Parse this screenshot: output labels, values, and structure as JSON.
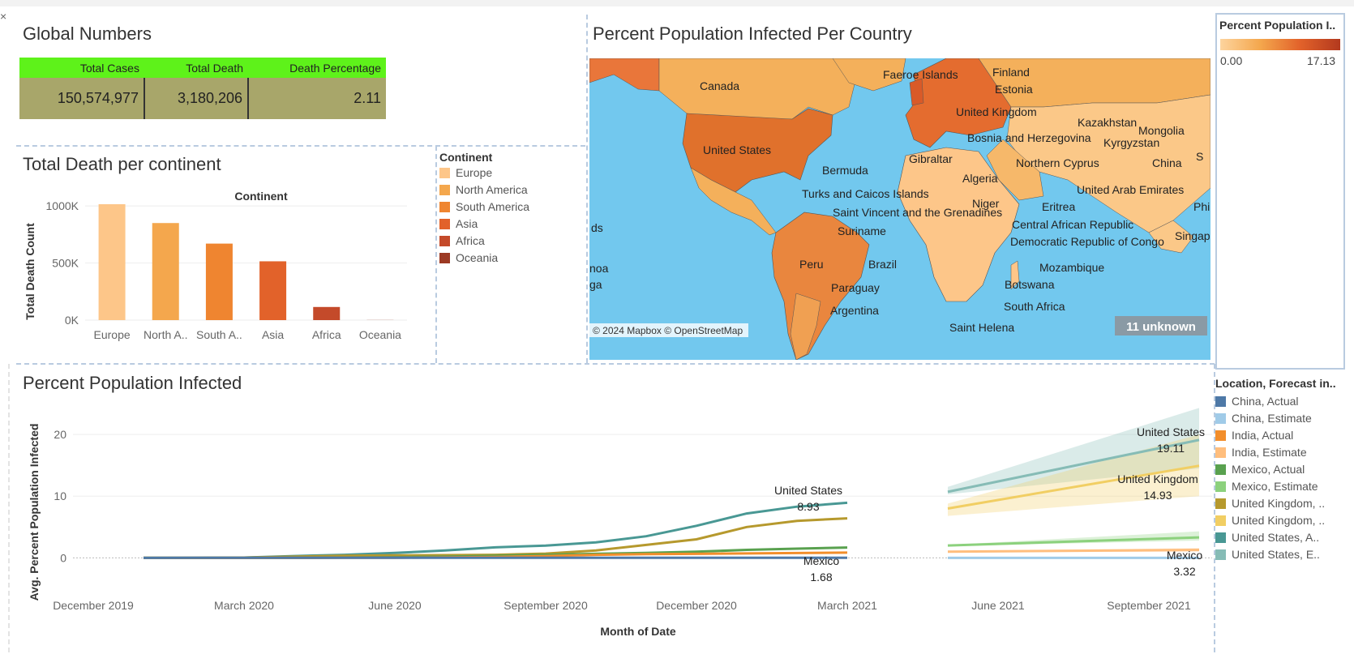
{
  "global_numbers": {
    "title": "Global Numbers",
    "headers": [
      "Total Cases",
      "Total Death",
      "Death Percentage"
    ],
    "values": [
      "150,574,977",
      "3,180,206",
      "2.11"
    ],
    "header_color": "#5ef21a",
    "cell_color": "#a8a66a"
  },
  "map": {
    "title": "Percent Population Infected Per Country",
    "attribution": "© 2024 Mapbox © OpenStreetMap",
    "unknown_badge": "11 unknown",
    "labels": [
      "Canada",
      "Faeroe Islands",
      "Finland",
      "Estonia",
      "United Kingdom",
      "Kazakhstan",
      "Mongolia",
      "Bosnia and Herzegovina",
      "Kyrgyzstan",
      "United States",
      "Gibraltar",
      "Northern Cyprus",
      "China",
      "Bermuda",
      "Algeria",
      "United Arab Emirates",
      "Turks and Caicos Islands",
      "Niger",
      "Eritrea",
      "Saint Vincent and the Grenadines",
      "Central African Republic",
      "Suriname",
      "Democratic Republic of Congo",
      "Singapore",
      "Peru",
      "Brazil",
      "Mozambique",
      "Paraguay",
      "Botswana",
      "Argentina",
      "South Africa",
      "Saint Helena",
      "ds",
      "noa",
      "ga",
      "Phi",
      "S"
    ]
  },
  "map_legend": {
    "title": "Percent Population I..",
    "min": "0.00",
    "max": "17.13"
  },
  "continent_legend": {
    "title": "Continent",
    "items": [
      {
        "label": "Europe",
        "color": "#fdc689"
      },
      {
        "label": "North America",
        "color": "#f4a74d"
      },
      {
        "label": "South America",
        "color": "#ef8530"
      },
      {
        "label": "Asia",
        "color": "#e2622a"
      },
      {
        "label": "Africa",
        "color": "#c44a2a"
      },
      {
        "label": "Oceania",
        "color": "#9c3a24"
      }
    ]
  },
  "forecast_legend": {
    "title": "Location, Forecast in..",
    "items": [
      {
        "label": "China, Actual",
        "color": "#4e79a7"
      },
      {
        "label": "China, Estimate",
        "color": "#a0cbe8"
      },
      {
        "label": "India, Actual",
        "color": "#f28e2b"
      },
      {
        "label": "India, Estimate",
        "color": "#ffbe7d"
      },
      {
        "label": "Mexico, Actual",
        "color": "#59a14f"
      },
      {
        "label": "Mexico, Estimate",
        "color": "#8cd17d"
      },
      {
        "label": "United Kingdom, ..",
        "color": "#b6992d"
      },
      {
        "label": "United Kingdom, ..",
        "color": "#f1ce63"
      },
      {
        "label": "United States, A..",
        "color": "#499894"
      },
      {
        "label": "United States, E..",
        "color": "#86bcb6"
      }
    ]
  },
  "chart_data": [
    {
      "type": "bar",
      "title": "Total Death per continent",
      "header": "Continent",
      "ylabel": "Total Death Count",
      "categories": [
        "Europe",
        "North A..",
        "South A..",
        "Asia",
        "Africa",
        "Oceania"
      ],
      "values": [
        1015000,
        850000,
        670000,
        515000,
        115000,
        1000
      ],
      "ylim": [
        0,
        1100000
      ],
      "yticks": [
        0,
        500000,
        1000000
      ],
      "ytick_labels": [
        "0K",
        "500K",
        "1000K"
      ],
      "colors": [
        "#fdc689",
        "#f4a74d",
        "#ef8530",
        "#e2622a",
        "#c44a2a",
        "#9c3a24"
      ]
    },
    {
      "type": "line",
      "title": "Percent Population Infected",
      "xlabel": "Month of Date",
      "ylabel": "Avg. Percent Population Infected",
      "ylim": [
        -1,
        25
      ],
      "yticks": [
        0,
        10,
        20
      ],
      "x_ticks": [
        "December 2019",
        "March 2020",
        "June 2020",
        "September 2020",
        "December 2020",
        "March 2021",
        "June 2021",
        "September 2021"
      ],
      "actual_months": [
        "2020-01",
        "2020-02",
        "2020-03",
        "2020-04",
        "2020-05",
        "2020-06",
        "2020-07",
        "2020-08",
        "2020-09",
        "2020-10",
        "2020-11",
        "2020-12",
        "2021-01",
        "2021-02",
        "2021-03",
        "2021-04"
      ],
      "forecast_months": [
        "2021-05",
        "2021-10"
      ],
      "series": [
        {
          "name": "United States, Actual",
          "color": "#499894",
          "values": [
            0,
            0,
            0.05,
            0.3,
            0.5,
            0.8,
            1.2,
            1.7,
            2.0,
            2.5,
            3.5,
            5.2,
            7.2,
            8.3,
            8.93,
            null
          ]
        },
        {
          "name": "United Kingdom, Actual",
          "color": "#b6992d",
          "values": [
            0,
            0,
            0.05,
            0.2,
            0.35,
            0.4,
            0.45,
            0.5,
            0.7,
            1.2,
            2.1,
            3.0,
            5.0,
            6.0,
            6.4,
            null
          ]
        },
        {
          "name": "Mexico, Actual",
          "color": "#59a14f",
          "values": [
            0,
            0,
            0,
            0.01,
            0.05,
            0.1,
            0.2,
            0.35,
            0.5,
            0.65,
            0.8,
            1.0,
            1.3,
            1.5,
            1.68,
            null
          ]
        },
        {
          "name": "India, Actual",
          "color": "#f28e2b",
          "values": [
            0,
            0,
            0,
            0,
            0.01,
            0.03,
            0.08,
            0.15,
            0.3,
            0.5,
            0.6,
            0.65,
            0.72,
            0.78,
            0.85,
            null
          ]
        },
        {
          "name": "China, Actual",
          "color": "#4e79a7",
          "values": [
            0,
            0.005,
            0.006,
            0.006,
            0.006,
            0.006,
            0.006,
            0.006,
            0.006,
            0.006,
            0.006,
            0.006,
            0.006,
            0.006,
            0.006,
            null
          ]
        }
      ],
      "forecasts": [
        {
          "name": "United States, Estimate",
          "color": "#86bcb6",
          "values": [
            10.7,
            19.11
          ],
          "lower": [
            10.3,
            14.5
          ],
          "upper": [
            11.5,
            24.3
          ]
        },
        {
          "name": "United Kingdom, Estimate",
          "color": "#f1ce63",
          "values": [
            8.0,
            14.93
          ],
          "lower": [
            6.8,
            10.0
          ],
          "upper": [
            8.8,
            20.0
          ]
        },
        {
          "name": "Mexico, Estimate",
          "color": "#8cd17d",
          "values": [
            2.0,
            3.32
          ],
          "lower": [
            1.9,
            2.8
          ],
          "upper": [
            2.1,
            4.3
          ]
        },
        {
          "name": "India, Estimate",
          "color": "#ffbe7d",
          "values": [
            1.0,
            1.3
          ],
          "lower": [
            0.9,
            1.0
          ],
          "upper": [
            1.1,
            1.6
          ]
        },
        {
          "name": "China, Estimate",
          "color": "#a0cbe8",
          "values": [
            0.0,
            0.0
          ],
          "lower": [
            0.0,
            0.0
          ],
          "upper": [
            0.0,
            0.0
          ]
        }
      ],
      "annotations": [
        {
          "name": "United States",
          "value": "8.93"
        },
        {
          "name": "Mexico",
          "value": "1.68"
        },
        {
          "name": "United States",
          "value": "19.11"
        },
        {
          "name": "United Kingdom",
          "value": "14.93"
        },
        {
          "name": "Mexico",
          "value": "3.32"
        }
      ]
    }
  ]
}
